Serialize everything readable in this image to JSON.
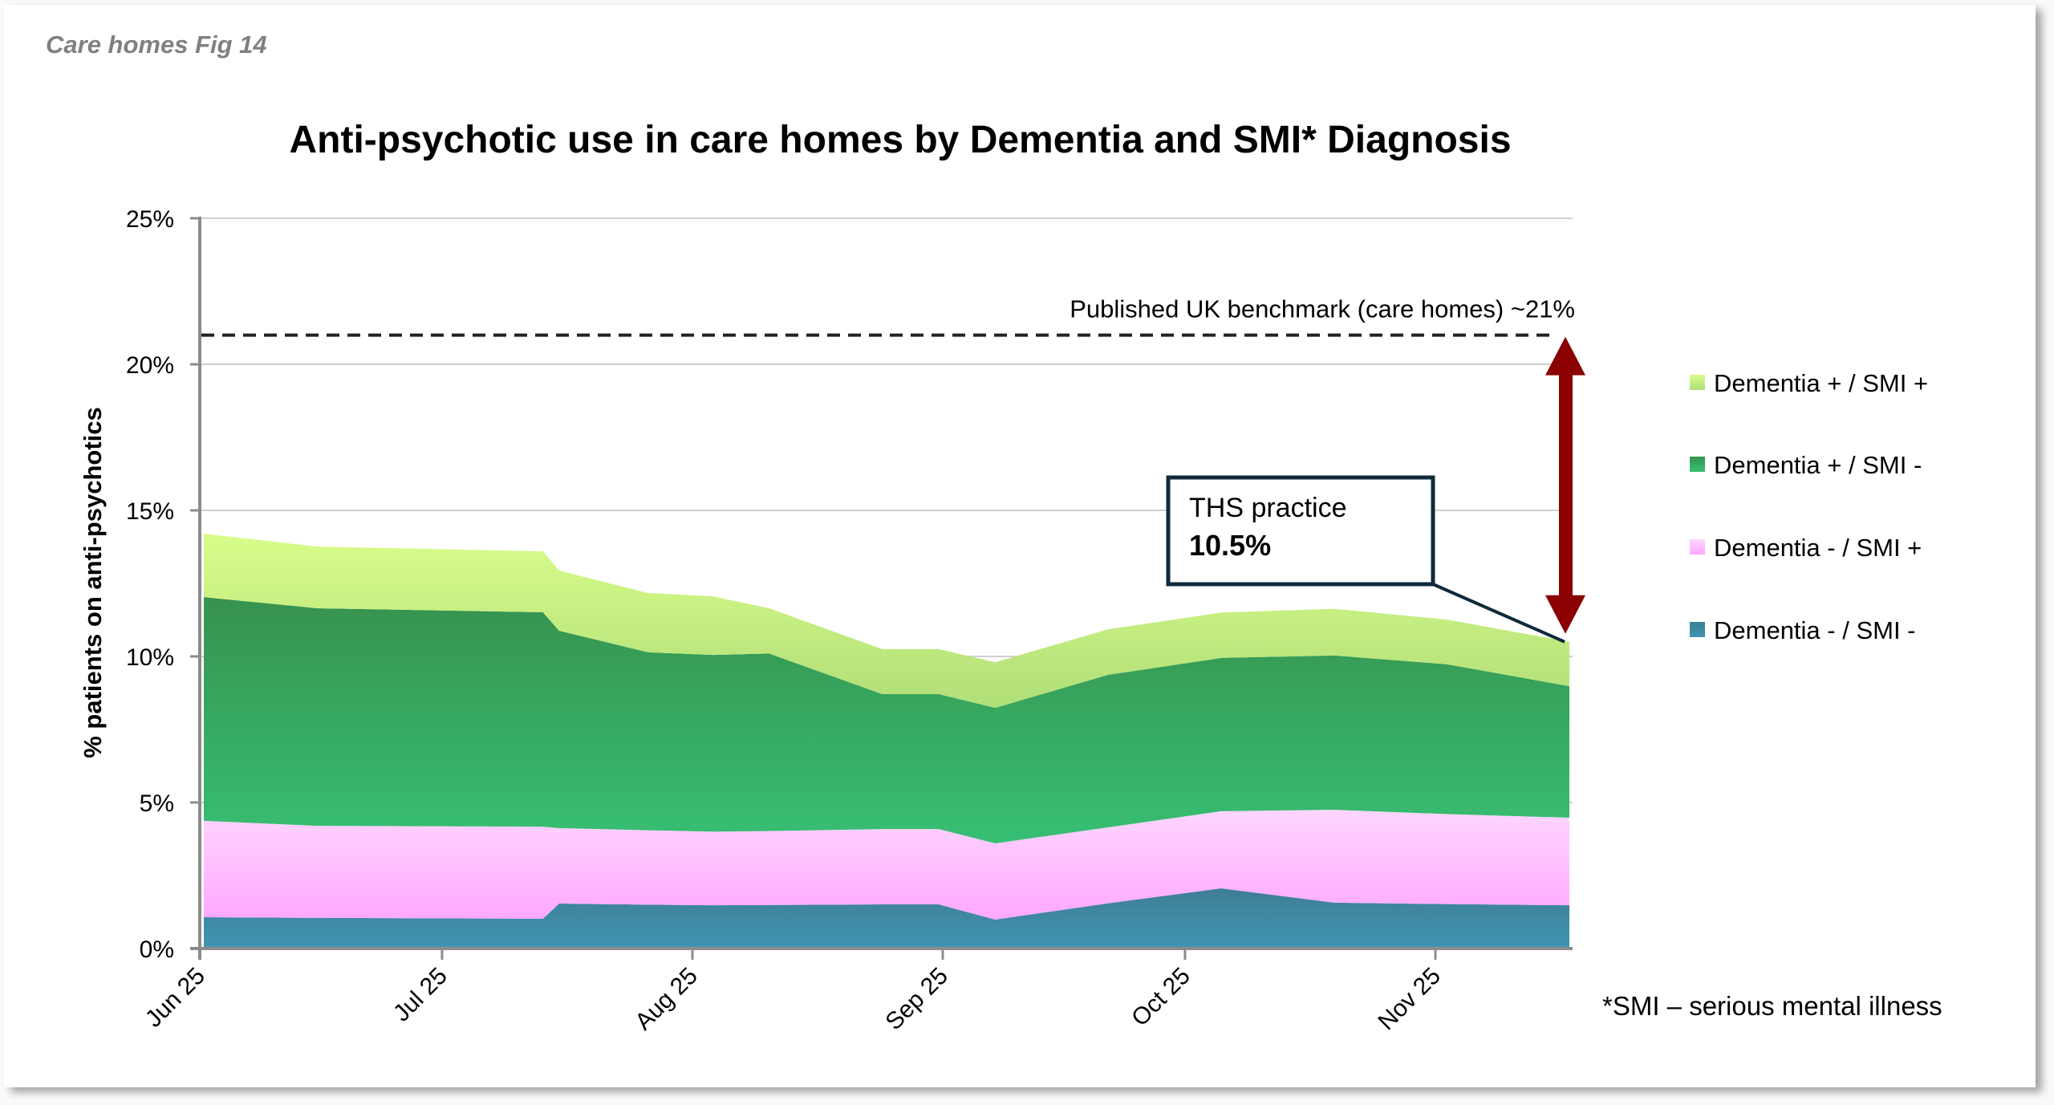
{
  "figure_label": "Care homes Fig 14",
  "chart_data": {
    "type": "area",
    "stacked": true,
    "title": "Anti-psychotic use in care homes by Dementia and SMI* Diagnosis",
    "xlabel": "",
    "ylabel": "% patients on anti-psychotics",
    "ylim": [
      0,
      25
    ],
    "yticks": [
      0,
      5,
      10,
      15,
      20,
      25
    ],
    "ytick_labels": [
      "0%",
      "5%",
      "10%",
      "15%",
      "20%",
      "25%"
    ],
    "xlim": [
      "2025-06-01",
      "2025-11-16"
    ],
    "xticks": [
      "2025-06-01",
      "2025-07-01",
      "2025-08-01",
      "2025-09-01",
      "2025-10-01",
      "2025-11-01"
    ],
    "xtick_labels": [
      "Jun 25",
      "Jul 25",
      "Aug 25",
      "Sep 25",
      "Oct 25",
      "Nov 25"
    ],
    "grid": "horizontal",
    "legend_position": "right",
    "x": [
      "2025-06-01",
      "2025-06-15",
      "2025-07-13",
      "2025-07-15",
      "2025-07-26",
      "2025-08-03",
      "2025-08-10",
      "2025-08-24",
      "2025-08-31",
      "2025-09-07",
      "2025-09-21",
      "2025-10-05",
      "2025-10-19",
      "2025-11-02",
      "2025-11-16"
    ],
    "series": [
      {
        "name": "Dementia - / SMI -",
        "color_top": "#3f7d94",
        "color_bottom": "#3f95b3",
        "values": [
          1.07,
          1.05,
          1.02,
          1.54,
          1.5,
          1.48,
          1.49,
          1.51,
          1.51,
          0.99,
          1.55,
          2.06,
          1.57,
          1.52,
          1.48
        ]
      },
      {
        "name": "Dementia - / SMI +",
        "color_top": "#ffd6ff",
        "color_bottom": "#ffa8ff",
        "values": [
          3.3,
          3.15,
          3.15,
          2.58,
          2.55,
          2.52,
          2.53,
          2.58,
          2.58,
          2.61,
          2.6,
          2.64,
          3.18,
          3.08,
          3.0
        ]
      },
      {
        "name": "Dementia + / SMI -",
        "color_top": "#37924e",
        "color_bottom": "#37bf74",
        "values": [
          7.66,
          7.45,
          7.34,
          6.76,
          6.09,
          6.05,
          6.08,
          4.62,
          4.62,
          4.64,
          5.22,
          5.25,
          5.28,
          5.13,
          4.5
        ]
      },
      {
        "name": "Dementia + / SMI +",
        "color_top": "#d9fd8a",
        "color_bottom": "#b0de78",
        "values": [
          2.17,
          2.11,
          2.09,
          2.06,
          2.03,
          2.01,
          1.55,
          1.54,
          1.54,
          1.56,
          1.56,
          1.55,
          1.6,
          1.53,
          1.52
        ]
      }
    ],
    "legend": [
      "Dementia + / SMI +",
      "Dementia + / SMI -",
      "Dementia - / SMI +",
      "Dementia - / SMI -"
    ],
    "annotations": {
      "benchmark": {
        "value": 21,
        "label": "Published UK benchmark (care homes) ~21%",
        "style": "dashed",
        "color": "#222222"
      },
      "callout": {
        "line1": "THS practice",
        "line2": "10.5%",
        "points_to_value": 10.5,
        "border_color": "#0e2a3b"
      },
      "gap_arrow": {
        "from": 10.5,
        "to": 21,
        "color": "#8b0000",
        "double_headed": true
      }
    },
    "footnote": "*SMI – serious mental illness"
  }
}
